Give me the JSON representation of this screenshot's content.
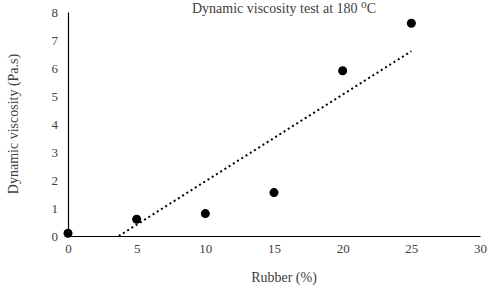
{
  "chart_data": {
    "type": "scatter",
    "title": "Dynamic viscosity test at 180 ⁰C",
    "x_label": "Rubber (%)",
    "y_label": "Dynamic viscosity (Pa.s)",
    "x": [
      0,
      5,
      10,
      15,
      20,
      25
    ],
    "values": [
      0.1,
      0.6,
      0.8,
      1.55,
      5.9,
      7.6
    ],
    "color": "#000000",
    "marker": "circle",
    "trendline": {
      "x": [
        3.7,
        25
      ],
      "values": [
        0,
        6.6
      ],
      "line_style": "dotted",
      "color": "#000000"
    },
    "xlim": [
      0,
      30
    ],
    "xticks": [
      0,
      5,
      10,
      15,
      20,
      25,
      30
    ],
    "ylim": [
      0,
      8
    ],
    "yticks": [
      0,
      1,
      2,
      3,
      4,
      5,
      6,
      7,
      8
    ],
    "grid": false
  }
}
